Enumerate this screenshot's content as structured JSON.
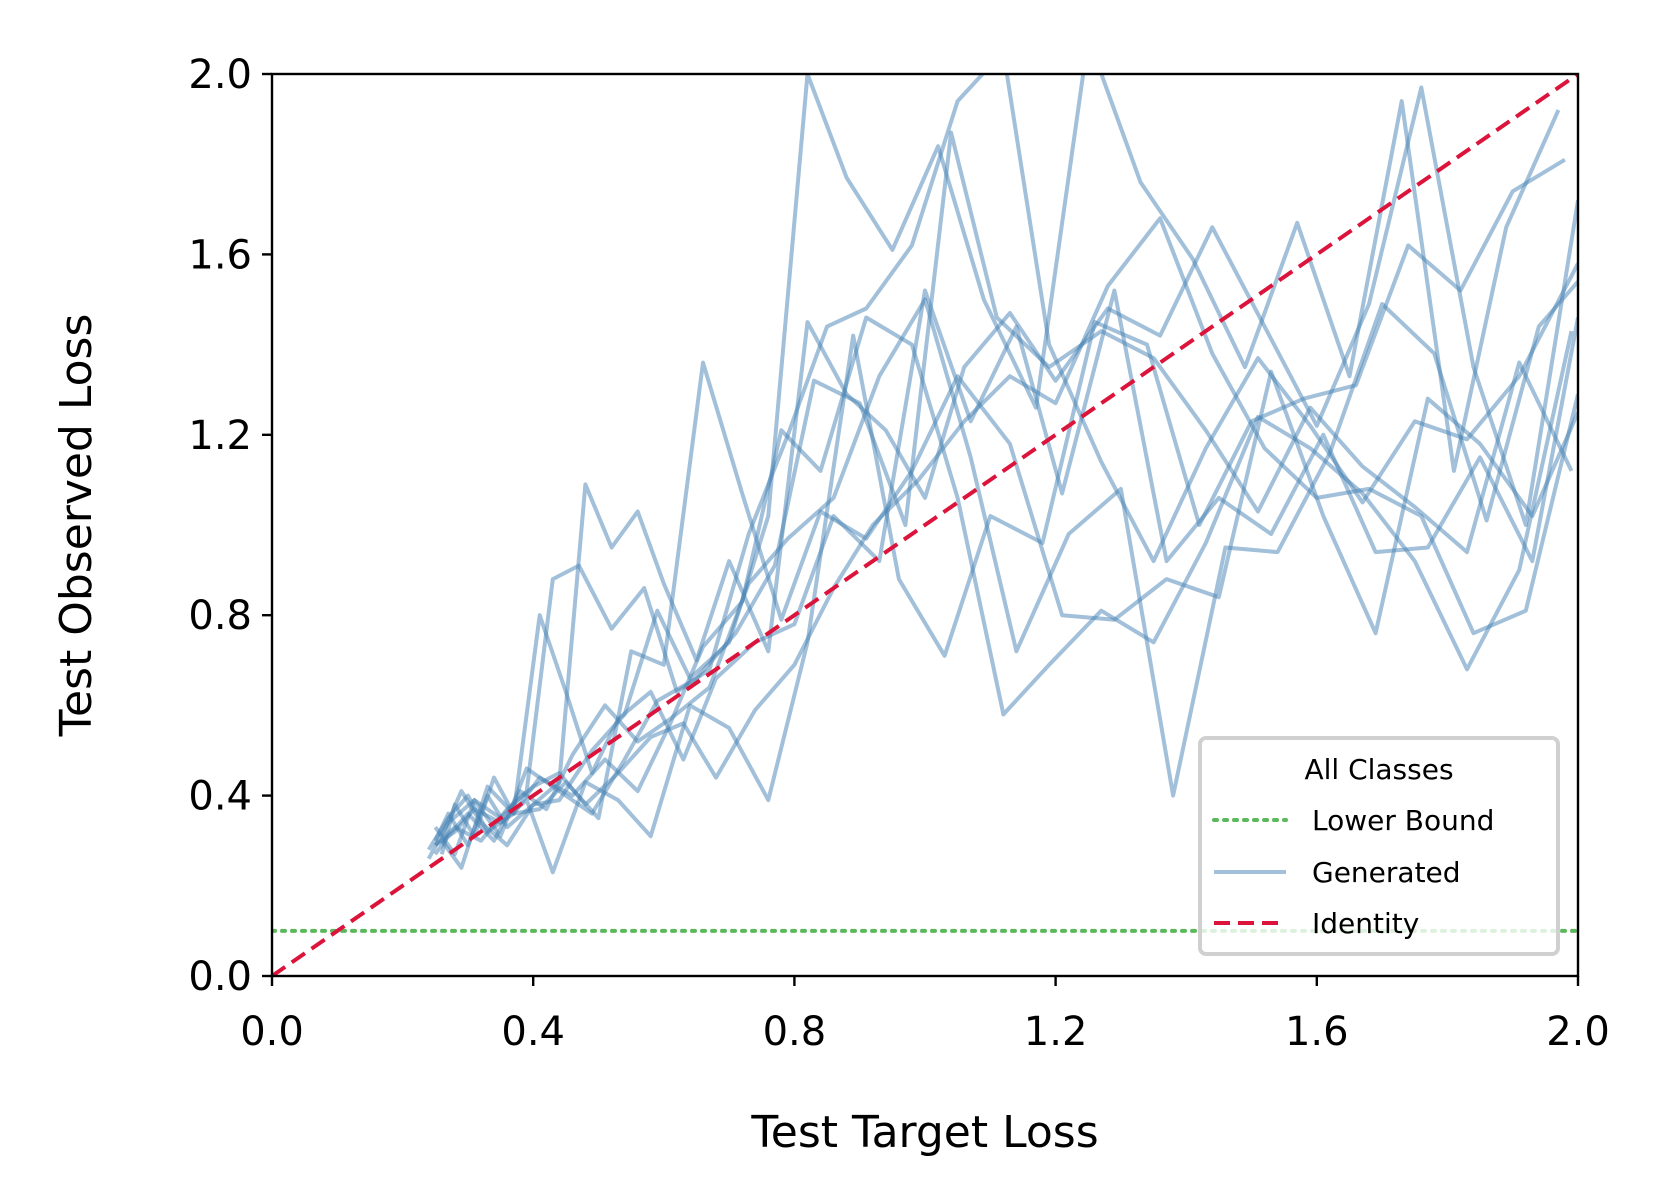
{
  "chart_data": {
    "type": "line",
    "title": "",
    "xlabel": "Test Target Loss",
    "ylabel": "Test Observed Loss",
    "xlim": [
      0.0,
      2.0
    ],
    "ylim": [
      0.0,
      2.0
    ],
    "xticks": [
      "0.0",
      "0.4",
      "0.8",
      "1.2",
      "1.6",
      "2.0"
    ],
    "yticks": [
      "0.0",
      "0.4",
      "0.8",
      "1.2",
      "1.6",
      "2.0"
    ],
    "grid": false,
    "legend": {
      "title": "All Classes",
      "placement": "lower-right",
      "entries": [
        {
          "label": "Lower Bound",
          "style": "dotted",
          "color": "#5cb85c"
        },
        {
          "label": "Generated",
          "style": "solid",
          "color": "#4682b4"
        },
        {
          "label": "Identity",
          "style": "dashed",
          "color": "#dc143c"
        }
      ]
    },
    "reference_lines": {
      "lower_bound": 0.1,
      "identity": [
        [
          0.0,
          0.0
        ],
        [
          2.0,
          2.0
        ]
      ]
    },
    "series": [
      {
        "x": [
          0.25,
          0.27,
          0.3,
          0.33,
          0.36,
          0.4,
          0.44,
          0.48,
          0.52,
          0.56,
          0.6,
          0.65,
          0.7,
          0.76,
          0.82,
          0.88,
          0.94,
          1.0,
          1.06,
          1.13,
          1.2,
          1.28,
          1.36,
          1.44,
          1.52,
          1.6,
          1.68,
          1.76,
          1.84,
          1.92,
          2.0
        ],
        "y": [
          0.3,
          0.36,
          0.29,
          0.4,
          0.33,
          0.38,
          0.43,
          1.09,
          0.95,
          1.03,
          0.87,
          0.7,
          0.92,
          0.72,
          1.45,
          1.29,
          1.21,
          1.06,
          1.35,
          1.47,
          1.32,
          1.48,
          1.42,
          1.66,
          1.44,
          1.22,
          1.49,
          1.97,
          1.35,
          1.0,
          1.72
        ]
      },
      {
        "x": [
          0.26,
          0.28,
          0.31,
          0.34,
          0.37,
          0.41,
          0.45,
          0.49,
          0.53,
          0.58,
          0.63,
          0.68,
          0.74,
          0.8,
          0.86,
          0.93,
          1.0,
          1.07,
          1.14,
          1.21,
          1.29,
          1.37,
          1.45,
          1.53,
          1.61,
          1.69,
          1.77,
          1.85,
          1.93,
          2.0
        ],
        "y": [
          0.27,
          0.38,
          0.31,
          0.44,
          0.36,
          0.8,
          0.63,
          0.45,
          0.57,
          0.63,
          0.48,
          0.66,
          0.74,
          0.78,
          1.02,
          0.92,
          1.52,
          1.23,
          1.44,
          1.07,
          1.52,
          0.92,
          1.06,
          0.98,
          1.2,
          0.94,
          0.95,
          1.15,
          0.92,
          1.46
        ]
      },
      {
        "x": [
          0.25,
          0.28,
          0.31,
          0.35,
          0.39,
          0.43,
          0.47,
          0.52,
          0.57,
          0.62,
          0.67,
          0.73,
          0.79,
          0.85,
          0.91,
          0.98,
          1.05,
          1.12,
          1.19,
          1.27,
          1.35,
          1.43,
          1.51,
          1.59,
          1.67,
          1.75,
          1.83,
          1.91,
          2.0
        ],
        "y": [
          0.33,
          0.27,
          0.39,
          0.35,
          0.41,
          0.88,
          0.91,
          0.77,
          0.86,
          0.63,
          0.68,
          0.98,
          1.2,
          1.44,
          1.48,
          1.62,
          1.94,
          2.05,
          1.4,
          1.14,
          0.92,
          1.17,
          1.37,
          1.22,
          1.05,
          1.23,
          1.19,
          1.33,
          1.58
        ]
      },
      {
        "x": [
          0.26,
          0.29,
          0.32,
          0.36,
          0.4,
          0.44,
          0.49,
          0.54,
          0.59,
          0.64,
          0.7,
          0.76,
          0.82,
          0.88,
          0.95,
          1.02,
          1.09,
          1.17,
          1.25,
          1.33,
          1.41,
          1.49,
          1.57,
          1.65,
          1.73,
          1.81,
          1.89,
          1.97
        ],
        "y": [
          0.31,
          0.41,
          0.34,
          0.29,
          0.38,
          0.39,
          0.5,
          0.58,
          0.81,
          0.66,
          0.74,
          1.02,
          2.0,
          1.77,
          1.61,
          1.84,
          1.5,
          1.26,
          2.08,
          1.76,
          1.59,
          1.35,
          1.67,
          1.33,
          1.94,
          1.12,
          1.66,
          1.92
        ]
      },
      {
        "x": [
          0.25,
          0.28,
          0.32,
          0.36,
          0.4,
          0.44,
          0.48,
          0.53,
          0.58,
          0.63,
          0.68,
          0.74,
          0.8,
          0.86,
          0.92,
          0.99,
          1.06,
          1.13,
          1.2,
          1.28,
          1.36,
          1.44,
          1.52,
          1.6,
          1.68,
          1.76,
          1.84,
          1.92,
          2.0
        ],
        "y": [
          0.29,
          0.33,
          0.3,
          0.37,
          0.42,
          0.45,
          0.38,
          0.45,
          0.53,
          0.56,
          0.44,
          0.59,
          0.69,
          0.86,
          1.0,
          1.1,
          1.23,
          1.33,
          1.27,
          1.53,
          1.68,
          1.38,
          1.17,
          1.06,
          1.08,
          1.02,
          0.76,
          0.81,
          1.29
        ]
      },
      {
        "x": [
          0.24,
          0.27,
          0.3,
          0.33,
          0.37,
          0.41,
          0.45,
          0.5,
          0.55,
          0.6,
          0.66,
          0.72,
          0.78,
          0.84,
          0.91,
          0.98,
          1.05,
          1.13,
          1.21,
          1.29,
          1.37,
          1.45,
          1.53,
          1.61,
          1.69,
          1.77,
          1.85,
          1.93,
          2.0
        ],
        "y": [
          0.28,
          0.35,
          0.4,
          0.32,
          0.36,
          0.37,
          0.43,
          0.35,
          0.72,
          0.69,
          1.36,
          1.07,
          0.79,
          1.03,
          0.97,
          1.12,
          1.33,
          1.18,
          0.8,
          0.79,
          0.88,
          0.84,
          1.34,
          1.02,
          0.76,
          1.28,
          1.18,
          1.02,
          1.25
        ]
      },
      {
        "x": [
          0.25,
          0.28,
          0.31,
          0.35,
          0.39,
          0.43,
          0.48,
          0.53,
          0.58,
          0.64,
          0.7,
          0.76,
          0.82,
          0.89,
          0.96,
          1.03,
          1.1,
          1.18,
          1.26,
          1.34,
          1.42,
          1.5,
          1.58,
          1.66,
          1.74,
          1.82,
          1.9,
          1.98
        ],
        "y": [
          0.29,
          0.32,
          0.37,
          0.34,
          0.39,
          0.23,
          0.43,
          0.39,
          0.31,
          0.6,
          0.55,
          0.39,
          0.74,
          1.42,
          0.88,
          0.71,
          1.02,
          0.96,
          1.45,
          1.4,
          1.0,
          1.23,
          1.28,
          1.31,
          1.62,
          1.52,
          1.74,
          1.81
        ]
      },
      {
        "x": [
          0.26,
          0.29,
          0.33,
          0.37,
          0.41,
          0.46,
          0.51,
          0.56,
          0.61,
          0.66,
          0.72,
          0.78,
          0.84,
          0.91,
          0.98,
          1.05,
          1.12,
          1.19,
          1.27,
          1.35,
          1.43,
          1.51,
          1.59,
          1.67,
          1.75,
          1.83,
          1.91,
          1.99
        ],
        "y": [
          0.3,
          0.24,
          0.42,
          0.36,
          0.44,
          0.4,
          0.48,
          0.41,
          0.56,
          0.73,
          0.83,
          1.21,
          1.12,
          1.46,
          1.4,
          1.06,
          0.58,
          0.69,
          0.81,
          0.74,
          0.96,
          1.24,
          1.17,
          1.07,
          0.92,
          0.68,
          0.9,
          1.43
        ]
      },
      {
        "x": [
          0.25,
          0.27,
          0.3,
          0.34,
          0.38,
          0.42,
          0.46,
          0.51,
          0.56,
          0.61,
          0.67,
          0.73,
          0.79,
          0.86,
          0.93,
          1.0,
          1.07,
          1.14,
          1.22,
          1.3,
          1.38,
          1.46,
          1.54,
          1.62,
          1.7,
          1.78,
          1.86,
          1.94,
          2.0
        ],
        "y": [
          0.27,
          0.31,
          0.36,
          0.3,
          0.41,
          0.37,
          0.49,
          0.6,
          0.52,
          0.57,
          0.64,
          0.87,
          0.97,
          1.06,
          1.33,
          1.5,
          1.15,
          0.72,
          0.98,
          1.08,
          0.4,
          0.95,
          0.94,
          1.16,
          1.49,
          1.38,
          1.01,
          1.44,
          1.54
        ]
      },
      {
        "x": [
          0.24,
          0.27,
          0.31,
          0.35,
          0.39,
          0.44,
          0.49,
          0.54,
          0.59,
          0.65,
          0.71,
          0.77,
          0.83,
          0.9,
          0.97,
          1.04,
          1.11,
          1.19,
          1.27,
          1.35,
          1.43,
          1.51,
          1.59,
          1.67,
          1.75,
          1.83,
          1.91,
          1.99
        ],
        "y": [
          0.26,
          0.34,
          0.39,
          0.31,
          0.46,
          0.41,
          0.36,
          0.48,
          0.61,
          0.66,
          0.76,
          0.91,
          1.32,
          1.27,
          1.0,
          1.87,
          1.46,
          1.35,
          1.43,
          1.37,
          1.21,
          1.03,
          1.26,
          1.13,
          1.04,
          0.94,
          1.36,
          1.12
        ]
      }
    ]
  }
}
